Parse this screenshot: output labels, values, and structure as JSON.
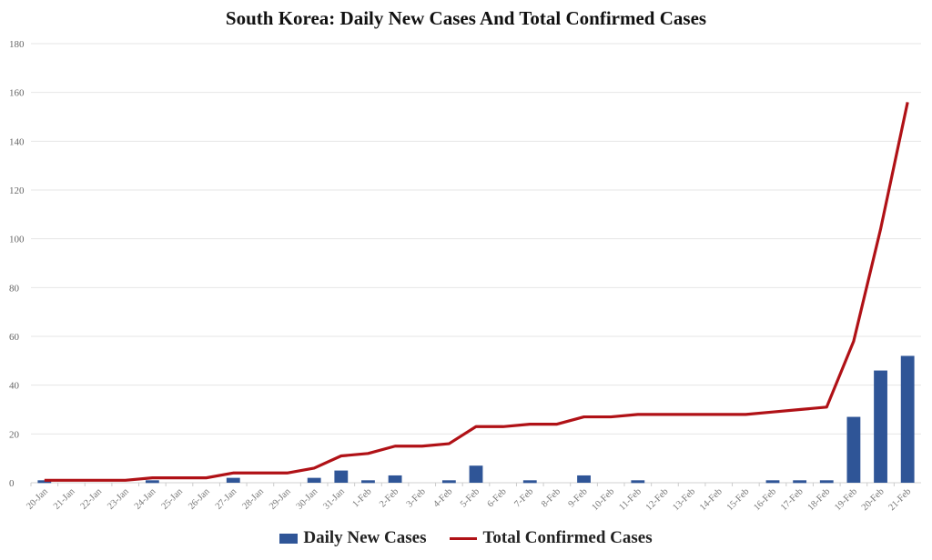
{
  "chart_data": {
    "type": "bar+line",
    "title": "South Korea: Daily New Cases And Total Confirmed Cases",
    "xlabel": "",
    "ylabel": "",
    "ylim": [
      0,
      180
    ],
    "yticks": [
      0,
      20,
      40,
      60,
      80,
      100,
      120,
      140,
      160,
      180
    ],
    "grid": true,
    "legend": "bottom",
    "categories": [
      "20-Jan",
      "21-Jan",
      "22-Jan",
      "23-Jan",
      "24-Jan",
      "25-Jan",
      "26-Jan",
      "27-Jan",
      "28-Jan",
      "29-Jan",
      "30-Jan",
      "31-Jan",
      "1-Feb",
      "2-Feb",
      "3-Feb",
      "4-Feb",
      "5-Feb",
      "6-Feb",
      "7-Feb",
      "8-Feb",
      "9-Feb",
      "10-Feb",
      "11-Feb",
      "12-Feb",
      "13-Feb",
      "14-Feb",
      "15-Feb",
      "16-Feb",
      "17-Feb",
      "18-Feb",
      "19-Feb",
      "20-Feb",
      "21-Feb"
    ],
    "series": [
      {
        "name": "Daily New Cases",
        "type": "bar",
        "color": "#2f5597",
        "values": [
          1,
          0,
          0,
          0,
          1,
          0,
          0,
          2,
          0,
          0,
          2,
          5,
          1,
          3,
          0,
          1,
          7,
          0,
          1,
          0,
          3,
          0,
          1,
          0,
          0,
          0,
          0,
          1,
          1,
          1,
          27,
          46,
          52
        ]
      },
      {
        "name": "Total Confirmed Cases",
        "type": "line",
        "color": "#b01116",
        "values": [
          1,
          1,
          1,
          1,
          2,
          2,
          2,
          4,
          4,
          4,
          6,
          11,
          12,
          15,
          15,
          16,
          23,
          23,
          24,
          24,
          27,
          27,
          28,
          28,
          28,
          28,
          28,
          29,
          30,
          31,
          58,
          104,
          156
        ]
      }
    ]
  }
}
